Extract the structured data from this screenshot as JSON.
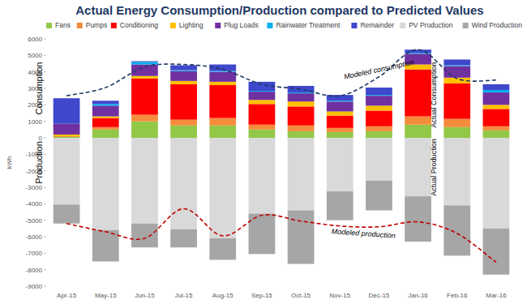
{
  "chart_data": {
    "type": "bar",
    "stacked": true,
    "title": "Actual Energy Consumption/Production compared to Predicted Values",
    "y_label": "kWh",
    "annotations": [
      "Consumption",
      "Production",
      "Actual Consumption",
      "Actual Production"
    ],
    "categories": [
      "Apr-15",
      "May-15",
      "Jun-15",
      "Jul-15",
      "Aug-15",
      "Sep-15",
      "Oct-15",
      "Nov-15",
      "Dec-15",
      "Jan-16",
      "Feb-16",
      "Mar-16"
    ],
    "ylim": [
      -9000,
      6000
    ],
    "yticks": [
      -9000,
      -8000,
      -7000,
      -6000,
      -5000,
      -4000,
      -3000,
      -2000,
      -1000,
      0,
      1000,
      2000,
      3000,
      4000,
      5000,
      6000
    ],
    "grid": false,
    "legend": "top",
    "series": [
      {
        "name": "Fans",
        "color": "#92c846",
        "values": [
          50,
          500,
          1000,
          750,
          750,
          500,
          400,
          350,
          400,
          800,
          650,
          450
        ]
      },
      {
        "name": "Pumps",
        "color": "#f58c3c",
        "values": [
          50,
          150,
          400,
          350,
          450,
          300,
          350,
          250,
          300,
          500,
          500,
          250
        ]
      },
      {
        "name": "Conditioning",
        "color": "#ff0000",
        "values": [
          0,
          550,
          2200,
          2150,
          2000,
          1250,
          1150,
          750,
          950,
          2850,
          2150,
          1050
        ]
      },
      {
        "name": "Lighting",
        "color": "#ffc000",
        "values": [
          100,
          100,
          150,
          200,
          200,
          250,
          300,
          250,
          300,
          300,
          350,
          250
        ]
      },
      {
        "name": "Plug Loads",
        "color": "#7030a0",
        "values": [
          650,
          650,
          700,
          600,
          600,
          500,
          500,
          600,
          600,
          650,
          700,
          750
        ]
      },
      {
        "name": "Rainwater Treatment",
        "color": "#00b0f0",
        "values": [
          0,
          100,
          150,
          50,
          50,
          50,
          50,
          50,
          50,
          50,
          50,
          150
        ]
      },
      {
        "name": "Remainder",
        "color": "#3f48cc",
        "values": [
          1550,
          200,
          50,
          300,
          400,
          550,
          400,
          350,
          450,
          200,
          350,
          350
        ]
      },
      {
        "name": "PV Production",
        "color": "#d9d9d9",
        "values": [
          -4050,
          -5600,
          -5200,
          -5550,
          -6100,
          -4600,
          -4400,
          -3250,
          -2600,
          -3550,
          -4100,
          -5500
        ]
      },
      {
        "name": "Wind Production",
        "color": "#a6a6a6",
        "values": [
          -1150,
          -1900,
          -1450,
          -1100,
          -1300,
          -2450,
          -3250,
          -1750,
          -1800,
          -2750,
          -3050,
          -2800
        ]
      },
      {
        "name": "Modeled consumption",
        "type": "line",
        "line_style": "dashed",
        "color": "#1f3864",
        "values": [
          2550,
          3050,
          4300,
          4450,
          4150,
          3250,
          2950,
          2550,
          3700,
          5350,
          3600,
          3500
        ]
      },
      {
        "name": "Modeled production",
        "type": "line",
        "line_style": "dashed",
        "color": "#c00000",
        "values": [
          -5200,
          -5700,
          -6100,
          -4300,
          -5950,
          -4700,
          -5050,
          -5350,
          -5400,
          -5100,
          -5800,
          -7550
        ]
      }
    ]
  }
}
